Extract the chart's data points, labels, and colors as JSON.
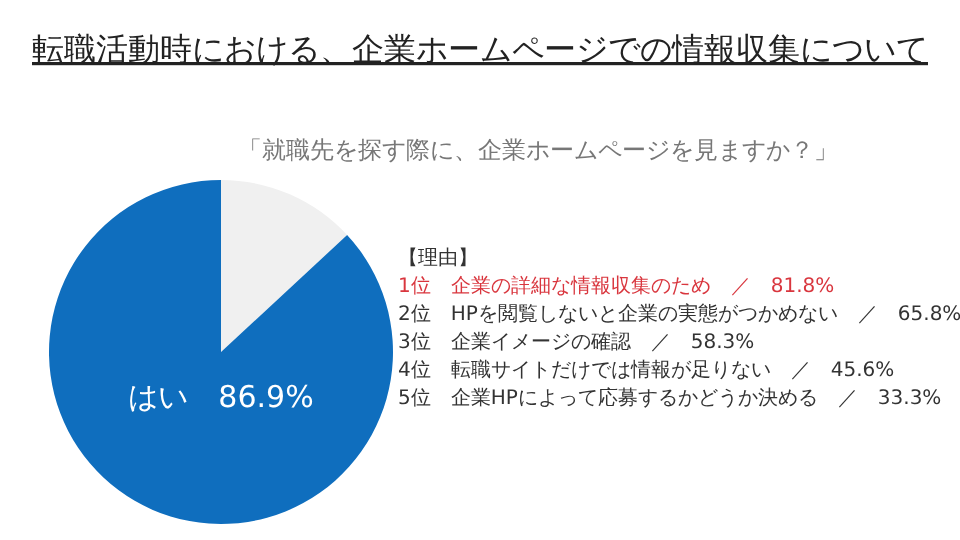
{
  "chart_data": {
    "type": "pie",
    "title": "転職活動時における、企業ホームページでの情報収集について",
    "subtitle": "「就職先を探す際に、企業ホームページを見ますか？」",
    "categories": [
      null,
      "はい"
    ],
    "values": [
      13.1,
      86.9
    ],
    "value_labels": [
      null,
      "86.9%"
    ],
    "colors": [
      "#f0f0f0",
      "#0f6ebe"
    ],
    "legend": false,
    "annotations": [
      "【理由】",
      "1位　企業の詳細な情報収集のため　／　81.8%",
      "2位　HPを閲覧しないと企業の実態がつかめない　／　65.8%",
      "3位　企業イメージの確認　／　58.3%",
      "4位　転職サイトだけでは情報が足りない　／　45.6%",
      "5位　企業HPによって応募するかどうか決める　／　33.3%"
    ]
  }
}
